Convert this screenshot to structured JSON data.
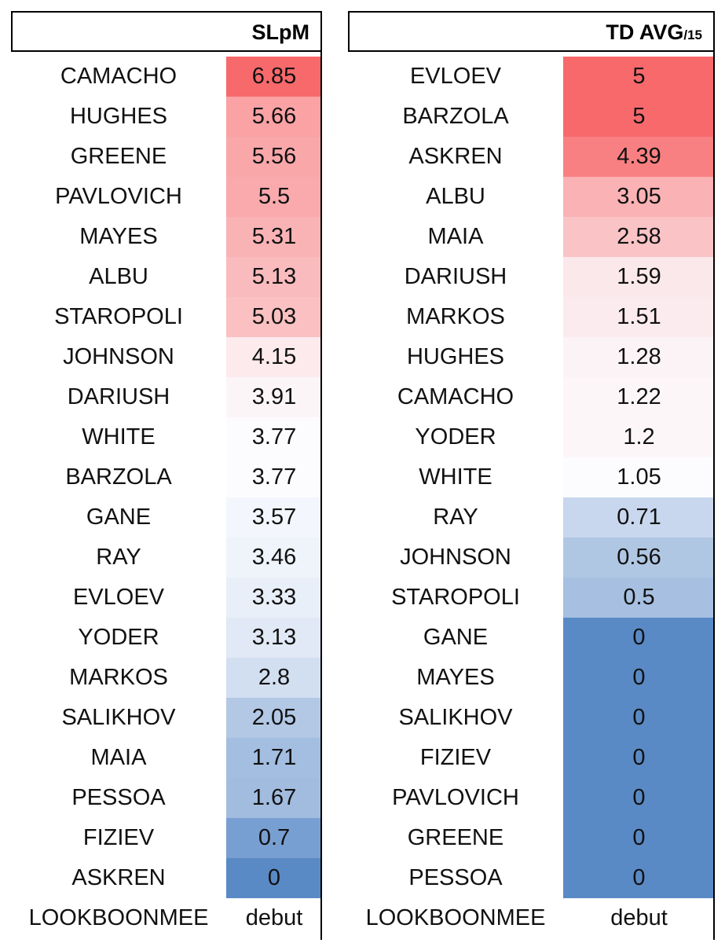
{
  "tables": [
    {
      "header": {
        "label": "SLpM",
        "suffix": ""
      },
      "rows": [
        [
          "CAMACHO",
          6.85
        ],
        [
          "HUGHES",
          5.66
        ],
        [
          "GREENE",
          5.56
        ],
        [
          "PAVLOVICH",
          5.5
        ],
        [
          "MAYES",
          5.31
        ],
        [
          "ALBU",
          5.13
        ],
        [
          "STAROPOLI",
          5.03
        ],
        [
          "JOHNSON",
          4.15
        ],
        [
          "DARIUSH",
          3.91
        ],
        [
          "WHITE",
          3.77
        ],
        [
          "BARZOLA",
          3.77
        ],
        [
          "GANE",
          3.57
        ],
        [
          "RAY",
          3.46
        ],
        [
          "EVLOEV",
          3.33
        ],
        [
          "YODER",
          3.13
        ],
        [
          "MARKOS",
          2.8
        ],
        [
          "SALIKHOV",
          2.05
        ],
        [
          "MAIA",
          1.71
        ],
        [
          "PESSOA",
          1.67
        ],
        [
          "FIZIEV",
          0.7
        ],
        [
          "ASKREN",
          0
        ],
        [
          "LOOKBOONMEE",
          "debut"
        ]
      ]
    },
    {
      "header": {
        "label": "TD AVG",
        "suffix": "/15"
      },
      "rows": [
        [
          "EVLOEV",
          5
        ],
        [
          "BARZOLA",
          5
        ],
        [
          "ASKREN",
          4.39
        ],
        [
          "ALBU",
          3.05
        ],
        [
          "MAIA",
          2.58
        ],
        [
          "DARIUSH",
          1.59
        ],
        [
          "MARKOS",
          1.51
        ],
        [
          "HUGHES",
          1.28
        ],
        [
          "CAMACHO",
          1.22
        ],
        [
          "YODER",
          1.2
        ],
        [
          "WHITE",
          1.05
        ],
        [
          "RAY",
          0.71
        ],
        [
          "JOHNSON",
          0.56
        ],
        [
          "STAROPOLI",
          0.5
        ],
        [
          "GANE",
          0
        ],
        [
          "MAYES",
          0
        ],
        [
          "SALIKHOV",
          0
        ],
        [
          "FIZIEV",
          0
        ],
        [
          "PAVLOVICH",
          0
        ],
        [
          "GREENE",
          0
        ],
        [
          "PESSOA",
          0
        ],
        [
          "LOOKBOONMEE",
          "debut"
        ]
      ]
    }
  ]
}
